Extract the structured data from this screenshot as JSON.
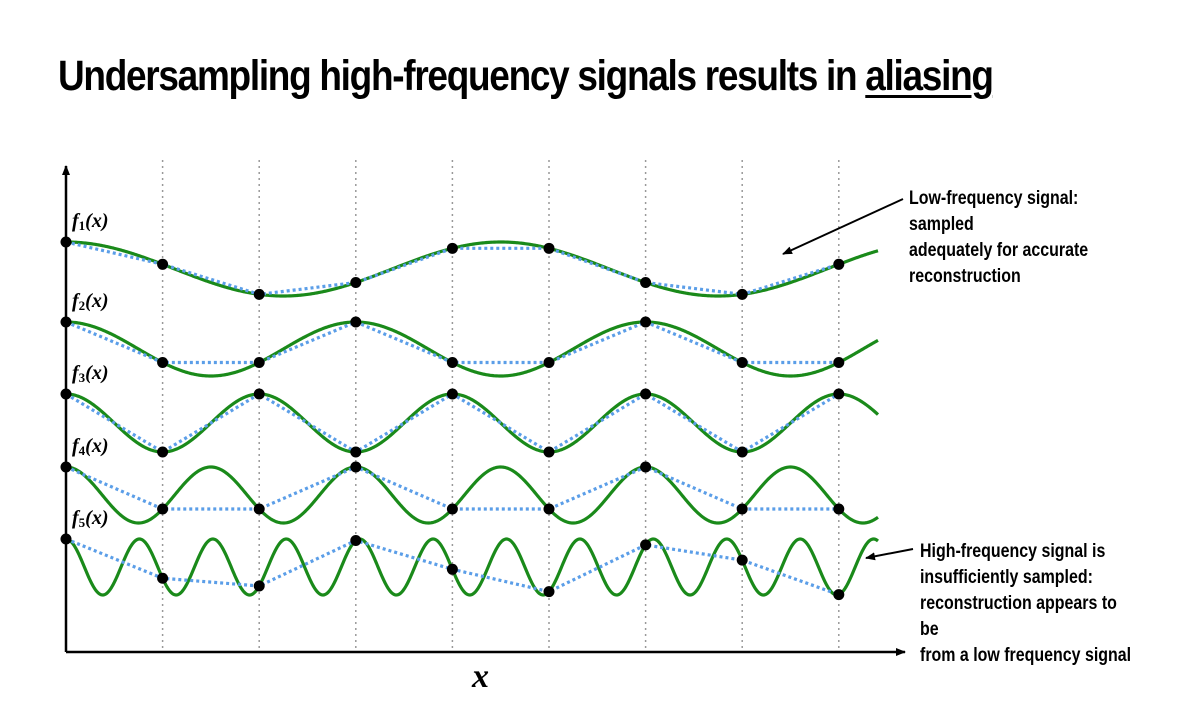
{
  "title": {
    "prefix": "Undersampling high-frequency signals results in ",
    "emphasis": "aliasing"
  },
  "x_axis_label": "x",
  "annotations": {
    "low": "Low-frequency signal: sampled\nadequately for accurate\nreconstruction",
    "high": "High-frequency signal is\ninsufficiently sampled:\nreconstruction appears to be\nfrom a low frequency signal"
  },
  "signals": [
    {
      "label": "f",
      "subscript": "1",
      "arg": "(x)",
      "period_samples": 4.5
    },
    {
      "label": "f",
      "subscript": "2",
      "arg": "(x)",
      "period_samples": 3
    },
    {
      "label": "f",
      "subscript": "3",
      "arg": "(x)",
      "period_samples": 2
    },
    {
      "label": "f",
      "subscript": "4",
      "arg": "(x)",
      "period_samples": 1.5
    },
    {
      "label": "f",
      "subscript": "5",
      "arg": "(x)",
      "period_samples": 0.76
    }
  ],
  "sample_count": 9,
  "colors": {
    "signal": "#1a8a1a",
    "reconstruction": "#5b9ee8",
    "sample": "#000000",
    "gridline": "#999999"
  }
}
